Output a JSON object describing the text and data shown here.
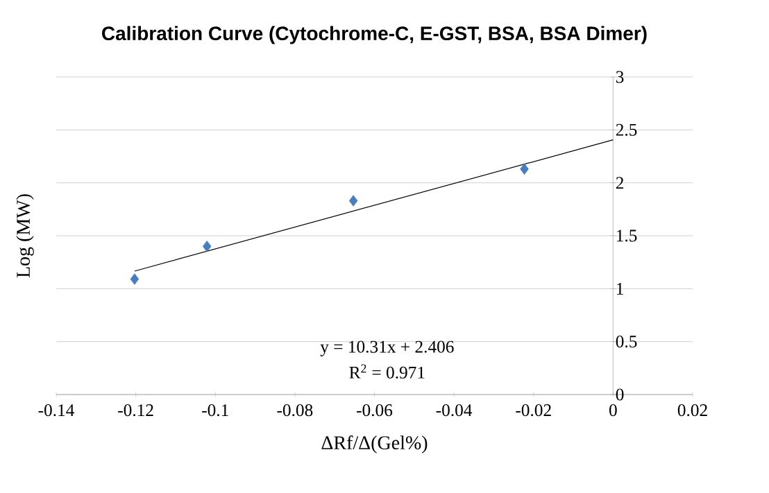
{
  "chart_data": {
    "type": "scatter",
    "title": "Calibration Curve  (Cytochrome-C, E-GST, BSA, BSA Dimer)",
    "xlabel": "ΔRf/Δ(Gel%)",
    "ylabel": "Log (MW)",
    "series": [
      {
        "color": "#4a7ebb",
        "marker": "diamond",
        "x": [
          -0.1203,
          -0.1021,
          -0.0653,
          -0.0223
        ],
        "values": [
          1.09,
          1.4,
          1.83,
          2.13
        ]
      },
      {
        "type": "line",
        "color": "#000000",
        "marker": "none",
        "x": [
          -0.1203,
          0
        ],
        "values": [
          1.166,
          2.406
        ]
      }
    ],
    "xlim": [
      -0.14,
      0.02
    ],
    "ylim": [
      0,
      3
    ],
    "xticks": [
      -0.14,
      -0.12,
      -0.1,
      -0.08,
      -0.06,
      -0.04,
      -0.02,
      0,
      0.02
    ],
    "yticks": [
      0,
      0.5,
      1,
      1.5,
      2,
      2.5,
      3
    ],
    "grid": "y",
    "annotations": [
      "y = 10.31x + 2.406",
      "R$^{2}$ = 0.971"
    ]
  }
}
